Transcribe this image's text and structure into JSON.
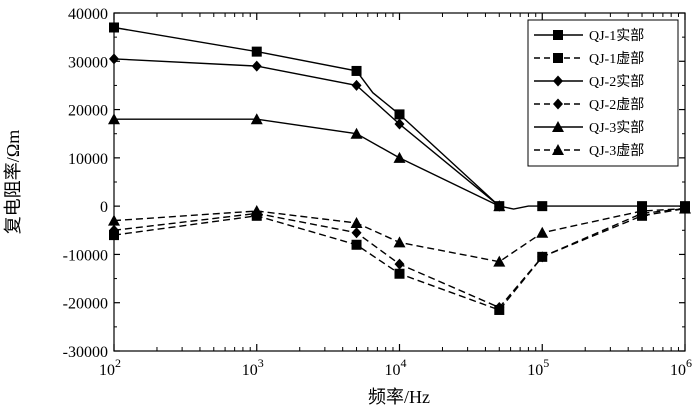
{
  "chart_data": {
    "type": "line",
    "title": "",
    "xlabel": "频率/Hz",
    "ylabel": "复电阻率/Ωm",
    "xscale": "log",
    "xlim": [
      100,
      1000000
    ],
    "ylim": [
      -30000,
      40000
    ],
    "x_ticks": [
      {
        "value": 100,
        "base": "10",
        "exp": "2"
      },
      {
        "value": 1000,
        "base": "10",
        "exp": "3"
      },
      {
        "value": 10000,
        "base": "10",
        "exp": "4"
      },
      {
        "value": 100000,
        "base": "10",
        "exp": "5"
      },
      {
        "value": 1000000,
        "base": "10",
        "exp": "6"
      }
    ],
    "y_ticks": [
      {
        "value": 40000,
        "label": "40000"
      },
      {
        "value": 30000,
        "label": "30000"
      },
      {
        "value": 20000,
        "label": "20000"
      },
      {
        "value": 10000,
        "label": "10000"
      },
      {
        "value": 0,
        "label": "0"
      },
      {
        "value": -10000,
        "label": "-10000"
      },
      {
        "value": -20000,
        "label": "-20000"
      },
      {
        "value": -30000,
        "label": "-30000"
      }
    ],
    "legend_position": "top-right",
    "series": [
      {
        "name": "QJ-1实部",
        "style": "solid",
        "marker": "square",
        "x": [
          100,
          1000,
          5000,
          10000,
          50000,
          100000,
          500000,
          1000000
        ],
        "y": [
          37000,
          32000,
          28000,
          19000,
          0,
          0,
          0,
          0
        ],
        "curve": [
          [
            100,
            37000
          ],
          [
            1000,
            32000
          ],
          [
            5000,
            28000
          ],
          [
            6500,
            23500
          ],
          [
            10000,
            19000
          ],
          [
            50000,
            0
          ],
          [
            63000,
            -600
          ],
          [
            80000,
            0
          ],
          [
            100000,
            0
          ],
          [
            500000,
            0
          ],
          [
            1000000,
            0
          ]
        ]
      },
      {
        "name": "QJ-1虚部",
        "style": "dashed",
        "marker": "square",
        "x": [
          100,
          1000,
          5000,
          10000,
          50000,
          100000,
          500000,
          1000000
        ],
        "y": [
          -6000,
          -2000,
          -8000,
          -14000,
          -21500,
          -10500,
          -2000,
          -500
        ],
        "curve": [
          [
            100,
            -6000
          ],
          [
            1000,
            -2000
          ],
          [
            5000,
            -8000
          ],
          [
            10000,
            -14000
          ],
          [
            50000,
            -21500
          ],
          [
            100000,
            -10500
          ],
          [
            500000,
            -2000
          ],
          [
            1000000,
            -500
          ]
        ]
      },
      {
        "name": "QJ-2实部",
        "style": "solid",
        "marker": "diamond",
        "x": [
          100,
          1000,
          5000,
          10000,
          50000
        ],
        "y": [
          30500,
          29000,
          25000,
          17000,
          0
        ],
        "curve": [
          [
            100,
            30500
          ],
          [
            1000,
            29000
          ],
          [
            5000,
            25000
          ],
          [
            10000,
            17000
          ],
          [
            50000,
            0
          ]
        ]
      },
      {
        "name": "QJ-2虚部",
        "style": "dashed",
        "marker": "diamond",
        "x": [
          100,
          1000,
          5000,
          10000,
          50000,
          100000,
          500000,
          1000000
        ],
        "y": [
          -5000,
          -1500,
          -5500,
          -12000,
          -21000,
          -10500,
          -1500,
          -500
        ],
        "curve": [
          [
            100,
            -5000
          ],
          [
            1000,
            -1500
          ],
          [
            5000,
            -5500
          ],
          [
            10000,
            -12000
          ],
          [
            50000,
            -21000
          ],
          [
            100000,
            -10500
          ],
          [
            500000,
            -1500
          ],
          [
            1000000,
            -500
          ]
        ]
      },
      {
        "name": "QJ-3实部",
        "style": "solid",
        "marker": "triangle",
        "x": [
          100,
          1000,
          5000,
          10000,
          50000
        ],
        "y": [
          18000,
          18000,
          15000,
          10000,
          0
        ],
        "curve": [
          [
            100,
            18000
          ],
          [
            1000,
            18000
          ],
          [
            5000,
            15000
          ],
          [
            10000,
            10000
          ],
          [
            50000,
            0
          ]
        ]
      },
      {
        "name": "QJ-3虚部",
        "style": "dashed",
        "marker": "triangle",
        "x": [
          100,
          1000,
          5000,
          10000,
          50000,
          100000,
          500000,
          1000000
        ],
        "y": [
          -3000,
          -1000,
          -3500,
          -7500,
          -11500,
          -5500,
          -1000,
          -500
        ],
        "curve": [
          [
            100,
            -3000
          ],
          [
            1000,
            -1000
          ],
          [
            5000,
            -3500
          ],
          [
            10000,
            -7500
          ],
          [
            50000,
            -11500
          ],
          [
            100000,
            -5500
          ],
          [
            500000,
            -1000
          ],
          [
            1000000,
            -500
          ]
        ]
      }
    ]
  }
}
